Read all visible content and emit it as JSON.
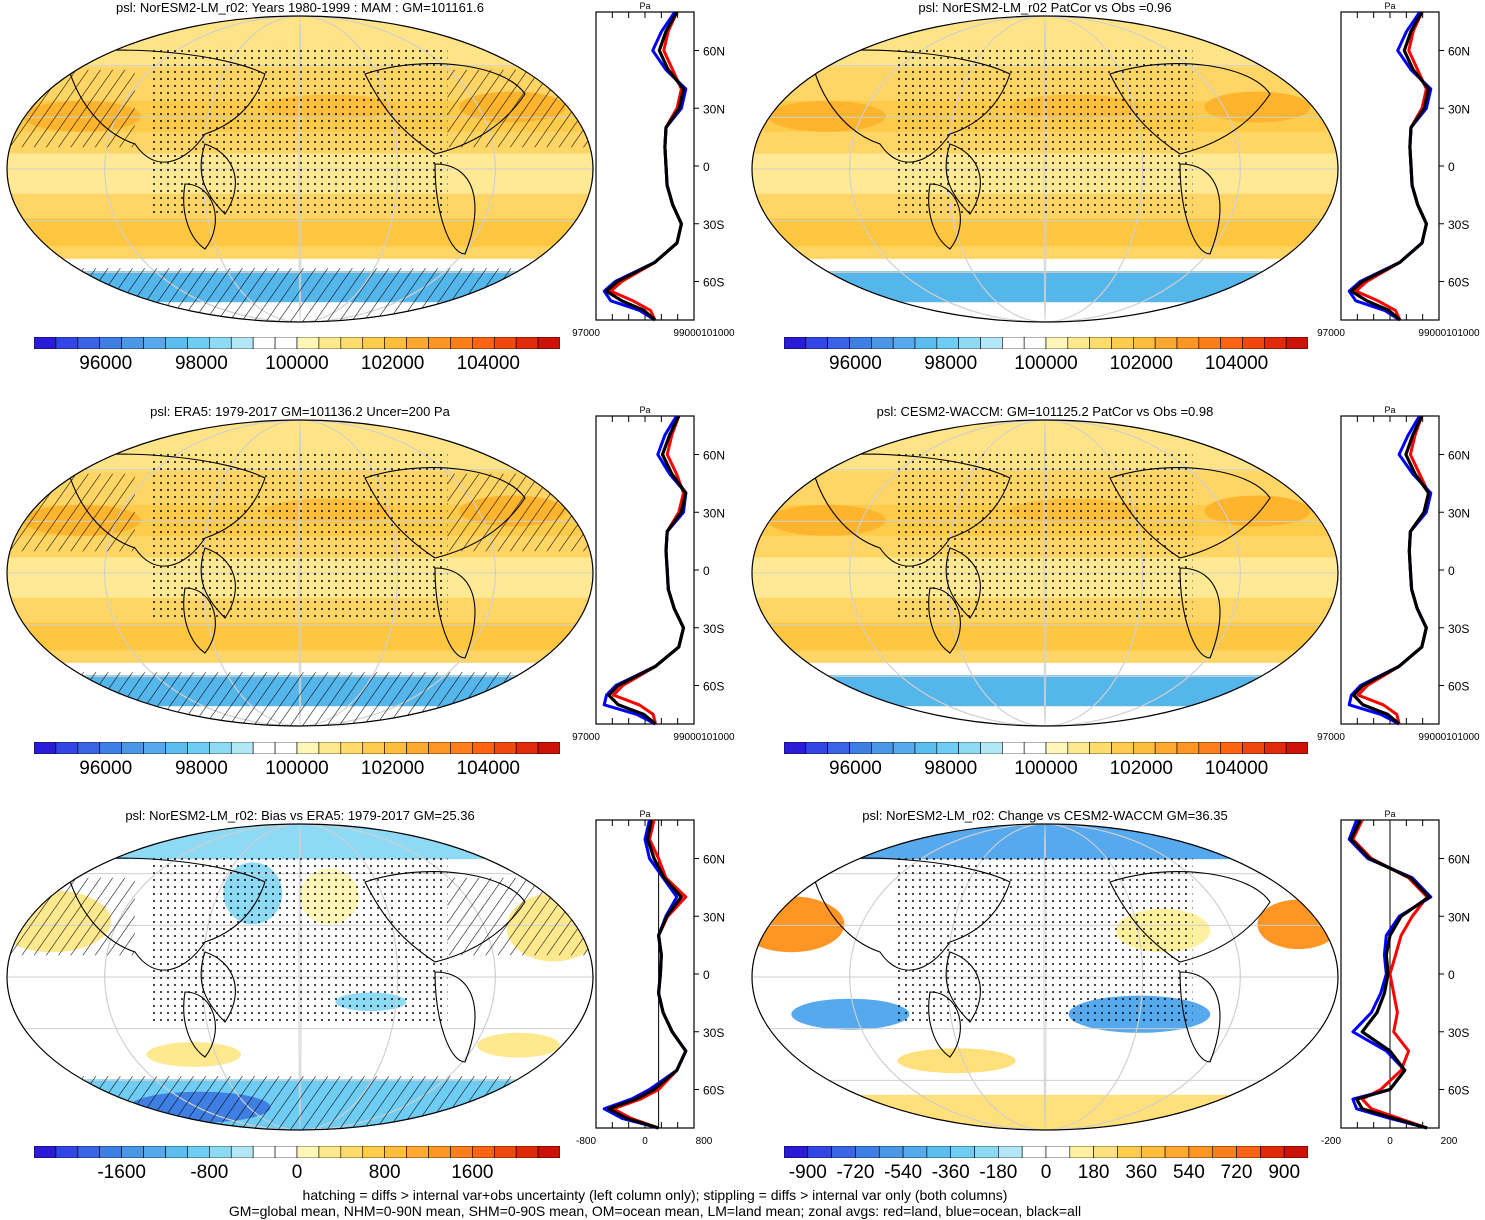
{
  "footer": {
    "line1": "hatching = diffs > internal var+obs uncertainty (left column only); stippling = diffs > internal var only (both columns)",
    "line2": "GM=global mean, NHM=0-90N mean, SHM=0-90S mean, OM=ocean mean, LM=land mean; zonal avgs: red=land, blue=ocean, black=all"
  },
  "colors": {
    "land": "#ff0000",
    "ocean": "#0000ff",
    "all": "#000000"
  },
  "panels": [
    {
      "title": "psl: NorESM2-LM_r02: Years 1980-1999 : MAM : GM=101161.6",
      "cbar_labels": [
        "96000",
        "98000",
        "100000",
        "102000",
        "104000"
      ],
      "zonal_xticks": [
        "97000",
        "99000101000"
      ],
      "unit": "Pa",
      "lat_labels": [
        "60N",
        "30N",
        "0",
        "30S",
        "60S"
      ],
      "kind": "abs",
      "hatch": true
    },
    {
      "title": "psl: NorESM2-LM_r02 PatCor vs Obs =0.96",
      "cbar_labels": [
        "96000",
        "98000",
        "100000",
        "102000",
        "104000"
      ],
      "zonal_xticks": [
        "97000",
        "99000101000"
      ],
      "unit": "Pa",
      "lat_labels": [
        "60N",
        "30N",
        "0",
        "30S",
        "60S"
      ],
      "kind": "abs",
      "hatch": false
    },
    {
      "title": "psl: ERA5: 1979-2017 GM=101136.2 Uncer=200 Pa",
      "cbar_labels": [
        "96000",
        "98000",
        "100000",
        "102000",
        "104000"
      ],
      "zonal_xticks": [
        "97000",
        "99000101000"
      ],
      "unit": "Pa",
      "lat_labels": [
        "60N",
        "30N",
        "0",
        "30S",
        "60S"
      ],
      "kind": "abs",
      "hatch": true
    },
    {
      "title": "psl: CESM2-WACCM: GM=101125.2 PatCor vs Obs =0.98",
      "cbar_labels": [
        "96000",
        "98000",
        "100000",
        "102000",
        "104000"
      ],
      "zonal_xticks": [
        "97000",
        "99000101000"
      ],
      "unit": "Pa",
      "lat_labels": [
        "60N",
        "30N",
        "0",
        "30S",
        "60S"
      ],
      "kind": "abs",
      "hatch": false
    },
    {
      "title": "psl: NorESM2-LM_r02: Bias vs ERA5: 1979-2017 GM=25.36",
      "cbar_labels": [
        "-1600",
        "-800",
        "0",
        "800",
        "1600"
      ],
      "zonal_xticks": [
        "-800",
        "0",
        "800"
      ],
      "unit": "Pa",
      "lat_labels": [
        "60N",
        "30N",
        "0",
        "30S",
        "60S"
      ],
      "kind": "bias",
      "hatch": true
    },
    {
      "title": "psl: NorESM2-LM_r02: Change vs CESM2-WACCM GM=36.35",
      "cbar_labels": [
        "-900",
        "-720",
        "-540",
        "-360",
        "-180",
        "0",
        "180",
        "360",
        "540",
        "720",
        "900"
      ],
      "zonal_xticks": [
        "-200",
        "0",
        "200"
      ],
      "unit": "Pa",
      "lat_labels": [
        "60N",
        "30N",
        "0",
        "30S",
        "60S"
      ],
      "kind": "change",
      "hatch": false
    }
  ],
  "chart_data": [
    {
      "type": "heatmap",
      "title": "psl: NorESM2-LM_r02: Years 1980-1999 : MAM : GM=101161.6",
      "colorbar": {
        "min": 94500,
        "max": 105500,
        "levels": 24,
        "tick_labels": [
          96000,
          98000,
          100000,
          102000,
          104000
        ]
      },
      "zonal_profile": {
        "lat": [
          80,
          70,
          60,
          50,
          40,
          30,
          20,
          10,
          0,
          -10,
          -20,
          -30,
          -40,
          -50,
          -60,
          -65,
          -70,
          -75,
          -80
        ],
        "land": [
          101500,
          101100,
          100900,
          101300,
          101700,
          101500,
          101000,
          100950,
          101000,
          101050,
          101300,
          101700,
          101500,
          100500,
          99000,
          98500,
          99500,
          100300,
          100500
        ],
        "ocean": [
          101400,
          100800,
          100400,
          101000,
          101900,
          101700,
          101000,
          100950,
          101000,
          101050,
          101300,
          101700,
          101500,
          100500,
          98700,
          98200,
          98500,
          99800,
          100500
        ],
        "all": [
          101500,
          101000,
          100700,
          101100,
          101800,
          101600,
          101000,
          100950,
          101000,
          101050,
          101300,
          101700,
          101500,
          100500,
          98800,
          98300,
          99000,
          100000,
          100500
        ]
      }
    },
    {
      "type": "heatmap",
      "title": "psl: NorESM2-LM_r02 PatCor vs Obs =0.96",
      "colorbar": {
        "min": 94500,
        "max": 105500,
        "levels": 24,
        "tick_labels": [
          96000,
          98000,
          100000,
          102000,
          104000
        ]
      },
      "zonal_profile": {
        "lat": [
          80,
          70,
          60,
          50,
          40,
          30,
          20,
          10,
          0,
          -10,
          -20,
          -30,
          -40,
          -50,
          -60,
          -65,
          -70,
          -75,
          -80
        ],
        "land": [
          101500,
          101100,
          100900,
          101300,
          101700,
          101500,
          101000,
          100950,
          101000,
          101050,
          101300,
          101700,
          101500,
          100500,
          99000,
          98500,
          99500,
          100300,
          100500
        ],
        "ocean": [
          101400,
          100800,
          100400,
          101000,
          101900,
          101700,
          101000,
          100950,
          101000,
          101050,
          101300,
          101700,
          101500,
          100500,
          98700,
          98200,
          98500,
          99800,
          100500
        ],
        "all": [
          101500,
          101000,
          100700,
          101100,
          101800,
          101600,
          101000,
          100950,
          101000,
          101050,
          101300,
          101700,
          101500,
          100500,
          98800,
          98300,
          99000,
          100000,
          100500
        ]
      }
    },
    {
      "type": "heatmap",
      "title": "psl: ERA5: 1979-2017 GM=101136.2 Uncer=200 Pa",
      "colorbar": {
        "min": 94500,
        "max": 105500,
        "levels": 24,
        "tick_labels": [
          96000,
          98000,
          100000,
          102000,
          104000
        ]
      },
      "zonal_profile": {
        "lat": [
          80,
          70,
          60,
          50,
          40,
          30,
          20,
          10,
          0,
          -10,
          -20,
          -30,
          -40,
          -50,
          -60,
          -65,
          -70,
          -75,
          -80
        ],
        "land": [
          101500,
          101200,
          101000,
          101400,
          101700,
          101500,
          101000,
          100950,
          101000,
          101050,
          101300,
          101700,
          101500,
          100500,
          99100,
          98700,
          99800,
          100400,
          100500
        ],
        "ocean": [
          101400,
          100900,
          100600,
          101100,
          101800,
          101700,
          101000,
          100950,
          101000,
          101050,
          101300,
          101700,
          101500,
          100500,
          98800,
          98400,
          98300,
          99700,
          100500
        ],
        "all": [
          101500,
          101100,
          100800,
          101200,
          101800,
          101600,
          101000,
          100950,
          101000,
          101050,
          101300,
          101700,
          101500,
          100500,
          98900,
          98500,
          98900,
          100000,
          100500
        ]
      }
    },
    {
      "type": "heatmap",
      "title": "psl: CESM2-WACCM: GM=101125.2 PatCor vs Obs =0.98",
      "colorbar": {
        "min": 94500,
        "max": 105500,
        "levels": 24,
        "tick_labels": [
          96000,
          98000,
          100000,
          102000,
          104000
        ]
      },
      "zonal_profile": {
        "lat": [
          80,
          70,
          60,
          50,
          40,
          30,
          20,
          10,
          0,
          -10,
          -20,
          -30,
          -40,
          -50,
          -60,
          -65,
          -70,
          -75,
          -80
        ],
        "land": [
          101500,
          101200,
          101000,
          101400,
          101800,
          101600,
          101000,
          100950,
          101000,
          101050,
          101300,
          101700,
          101500,
          100500,
          99100,
          98700,
          99800,
          100400,
          100500
        ],
        "ocean": [
          101400,
          100900,
          100500,
          101100,
          101900,
          101700,
          101000,
          100950,
          101000,
          101050,
          101300,
          101700,
          101500,
          100500,
          98800,
          98400,
          98300,
          99700,
          100500
        ],
        "all": [
          101500,
          101100,
          100800,
          101200,
          101800,
          101600,
          101000,
          100950,
          101000,
          101050,
          101300,
          101700,
          101500,
          100500,
          98900,
          98500,
          98900,
          100000,
          100500
        ]
      }
    },
    {
      "type": "heatmap",
      "title": "psl: NorESM2-LM_r02: Bias vs ERA5: 1979-2017 GM=25.36",
      "colorbar": {
        "min": -2400,
        "max": 2400,
        "levels": 24,
        "tick_labels": [
          -1600,
          -800,
          0,
          800,
          1600
        ]
      },
      "zonal_profile": {
        "lat": [
          80,
          70,
          60,
          50,
          40,
          30,
          20,
          10,
          0,
          -10,
          -20,
          -30,
          -40,
          -50,
          -60,
          -65,
          -70,
          -75,
          -80
        ],
        "land": [
          -50,
          -100,
          0,
          80,
          300,
          100,
          0,
          30,
          20,
          0,
          50,
          150,
          300,
          200,
          0,
          -200,
          -500,
          -300,
          0
        ],
        "ocean": [
          -100,
          -150,
          -100,
          50,
          200,
          80,
          0,
          30,
          20,
          0,
          50,
          150,
          300,
          200,
          -100,
          -300,
          -600,
          -400,
          0
        ],
        "all": [
          -80,
          -120,
          -50,
          60,
          250,
          90,
          0,
          30,
          20,
          0,
          50,
          150,
          300,
          200,
          -50,
          -250,
          -550,
          -350,
          0
        ]
      }
    },
    {
      "type": "heatmap",
      "title": "psl: NorESM2-LM_r02: Change vs CESM2-WACCM GM=36.35",
      "colorbar": {
        "min": -990,
        "max": 990,
        "levels": 22,
        "tick_labels": [
          -900,
          -720,
          -540,
          -360,
          -180,
          0,
          180,
          360,
          540,
          720,
          900
        ]
      },
      "zonal_profile": {
        "lat": [
          80,
          70,
          60,
          50,
          40,
          30,
          20,
          10,
          0,
          -10,
          -20,
          -30,
          -40,
          -50,
          -60,
          -65,
          -70,
          -75,
          -80
        ],
        "land": [
          -150,
          -200,
          -100,
          100,
          200,
          120,
          60,
          30,
          0,
          20,
          40,
          20,
          100,
          60,
          -50,
          -150,
          -100,
          50,
          200
        ],
        "ocean": [
          -180,
          -220,
          -120,
          120,
          220,
          50,
          -20,
          -30,
          -20,
          -50,
          -100,
          -200,
          -20,
          80,
          0,
          -200,
          -180,
          0,
          200
        ],
        "all": [
          -160,
          -210,
          -110,
          110,
          210,
          60,
          0,
          -20,
          -10,
          -30,
          -70,
          -150,
          0,
          80,
          0,
          -180,
          -150,
          20,
          200
        ]
      }
    }
  ]
}
